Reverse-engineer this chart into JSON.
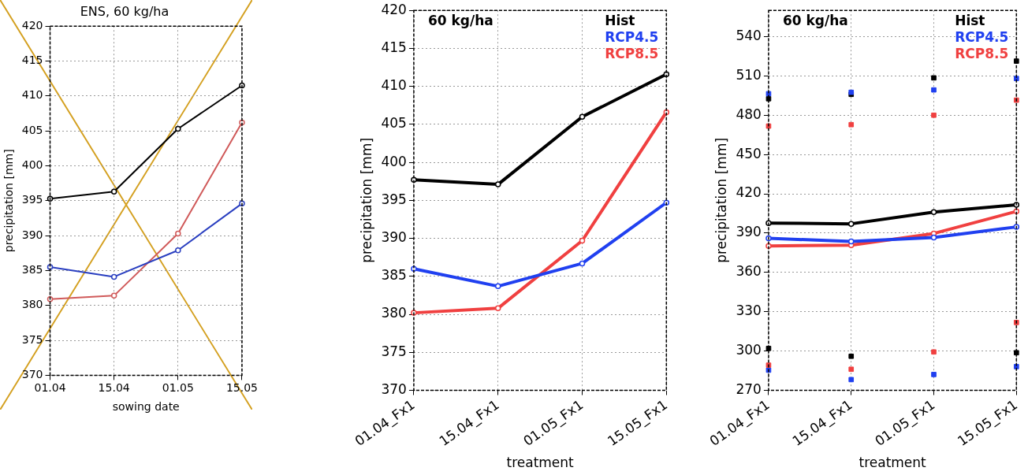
{
  "chart_data": [
    {
      "type": "line",
      "title": "ENS, 60 kg/ha",
      "xlabel": "sowing date",
      "ylabel": "precipitation [mm]",
      "categories": [
        "01.04",
        "15.04",
        "01.05",
        "15.05"
      ],
      "series": [
        {
          "color": "#000000",
          "values": [
            395.3,
            396.3,
            405.3,
            411.5
          ]
        },
        {
          "color": "#2a3fc0",
          "values": [
            385.5,
            384.1,
            387.9,
            394.6
          ]
        },
        {
          "color": "#d05a5a",
          "values": [
            380.9,
            381.4,
            390.3,
            406.2
          ]
        }
      ],
      "ylim": [
        370,
        420
      ],
      "yticks": [
        370,
        375,
        380,
        385,
        390,
        395,
        400,
        405,
        410,
        415,
        420
      ],
      "grid": true,
      "marker": "circle",
      "line_style": "solid"
    },
    {
      "type": "line",
      "xlabel": "treatment",
      "ylabel": "precipitation [mm]",
      "annotations": [
        "60 kg/ha"
      ],
      "categories": [
        "01.04_Fx1",
        "15.04_Fx1",
        "01.05_Fx1",
        "15.05_Fx1"
      ],
      "series": [
        {
          "name": "Hist",
          "color": "#000000",
          "values": [
            397.7,
            397.1,
            406.0,
            411.6
          ]
        },
        {
          "name": "RCP4.5",
          "color": "#2040f0",
          "values": [
            386.0,
            383.7,
            386.7,
            394.7
          ]
        },
        {
          "name": "RCP8.5",
          "color": "#f04040",
          "values": [
            380.2,
            380.8,
            389.7,
            406.6
          ]
        }
      ],
      "ylim": [
        370,
        420
      ],
      "yticks": [
        370,
        375,
        380,
        385,
        390,
        395,
        400,
        405,
        410,
        415,
        420
      ],
      "grid": true,
      "legend": "top right",
      "marker": "circle",
      "line_style": "solid"
    },
    {
      "type": "line",
      "xlabel": "treatment",
      "ylabel": "precipitation [mm]",
      "annotations": [
        "60 kg/ha"
      ],
      "categories": [
        "01.04_Fx1",
        "15.04_Fx1",
        "01.05_Fx1",
        "15.05_Fx1"
      ],
      "series": [
        {
          "name": "Hist",
          "color": "#000000",
          "values": [
            397.7,
            397.1,
            406.0,
            411.6
          ]
        },
        {
          "name": "RCP4.5",
          "color": "#2040f0",
          "values": [
            386.0,
            383.7,
            386.7,
            394.7
          ]
        },
        {
          "name": "RCP8.5",
          "color": "#f04040",
          "values": [
            380.2,
            380.8,
            389.7,
            406.6
          ]
        },
        {
          "type": "scatter",
          "marker": "square",
          "color": "#000000",
          "values": [
            492.6,
            495.9,
            508.5,
            521.3
          ]
        },
        {
          "type": "scatter",
          "marker": "square",
          "color": "#2040f0",
          "values": [
            496.4,
            497.5,
            499.3,
            508.0
          ]
        },
        {
          "type": "scatter",
          "marker": "square",
          "color": "#f04040",
          "values": [
            471.7,
            472.8,
            480.0,
            491.5
          ]
        },
        {
          "type": "scatter",
          "marker": "square",
          "color": "#000000",
          "values": [
            302.0,
            296.0,
            null,
            298.7
          ]
        },
        {
          "type": "scatter",
          "marker": "square",
          "color": "#2040f0",
          "values": [
            285.4,
            278.2,
            282.1,
            288.1
          ]
        },
        {
          "type": "scatter",
          "marker": "square",
          "color": "#f04040",
          "values": [
            289.2,
            286.1,
            299.3,
            321.8
          ]
        }
      ],
      "ylim": [
        270,
        560
      ],
      "yticks": [
        270,
        300,
        330,
        360,
        390,
        420,
        450,
        480,
        510,
        540
      ],
      "grid": true,
      "legend": "top right",
      "marker": "circle",
      "line_style": "solid"
    }
  ]
}
